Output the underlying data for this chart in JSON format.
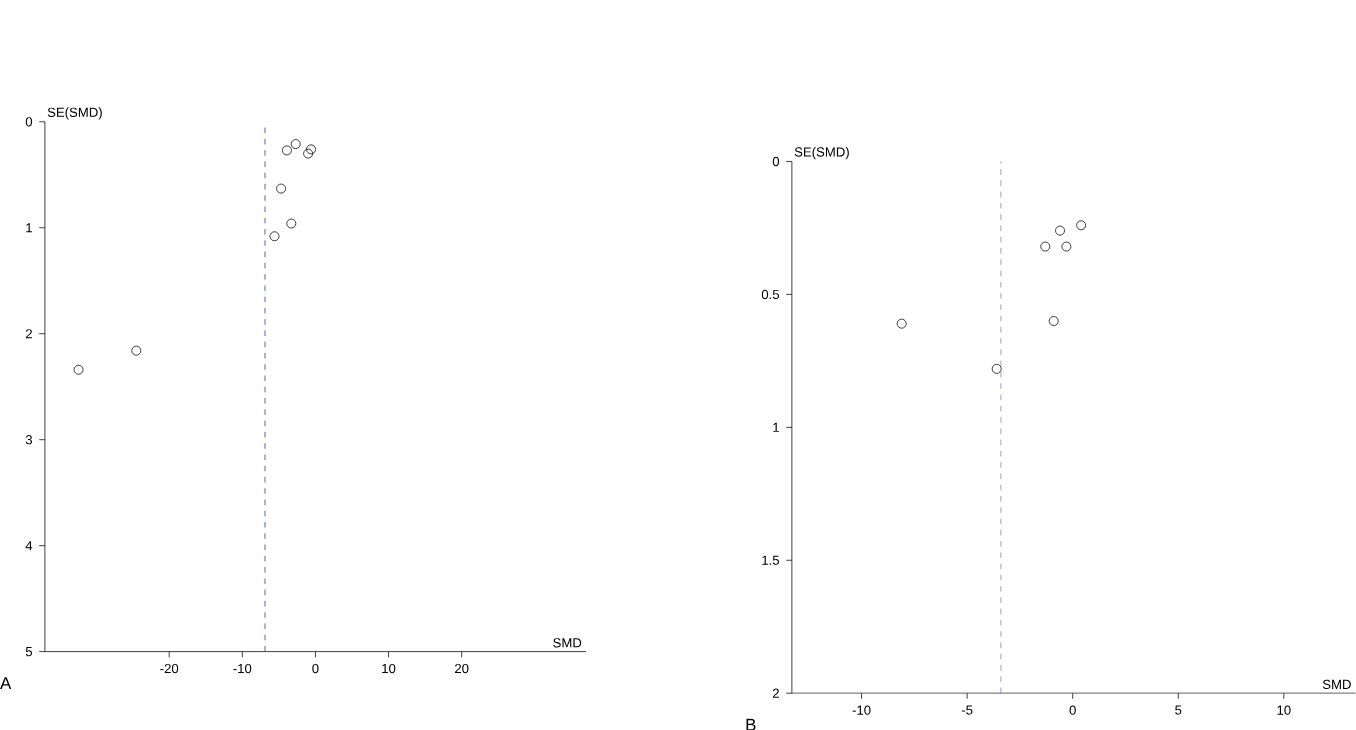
{
  "chart_data": [
    {
      "type": "scatter",
      "xlabel": "SMD",
      "ylabel": "SE(SMD)",
      "annotations": [
        "A"
      ],
      "marker": "circle",
      "xlim": [
        -37,
        37
      ],
      "ylim": [
        5,
        0
      ],
      "xticks": [
        -20,
        -10,
        0,
        10,
        20
      ],
      "yticks": [
        0,
        1,
        2,
        3,
        4,
        5
      ],
      "series": [
        {
          "color": "#000000",
          "x": [
            -32.4,
            -24.5,
            -3.9,
            -2.7,
            -1.0,
            -0.6,
            -4.7,
            -3.3,
            -5.6
          ],
          "values": [
            2.34,
            2.16,
            0.27,
            0.21,
            0.3,
            0.26,
            0.63,
            0.96,
            1.08
          ]
        }
      ],
      "ref_lines": [
        {
          "axis": "x",
          "value": -6.9,
          "color": "#2233aa",
          "line_style": "dashed"
        }
      ]
    },
    {
      "type": "scatter",
      "xlabel": "SMD",
      "ylabel": "SE(SMD)",
      "annotations": [
        "B"
      ],
      "marker": "circle",
      "xlim": [
        -13.3,
        13.4
      ],
      "ylim": [
        2,
        0
      ],
      "xticks": [
        -10,
        -5,
        0,
        5,
        10
      ],
      "yticks": [
        0,
        0.5,
        1,
        1.5,
        2
      ],
      "series": [
        {
          "color": "#000000",
          "x": [
            -8.1,
            -3.6,
            -1.3,
            -0.6,
            -0.3,
            0.4,
            -0.9
          ],
          "values": [
            0.61,
            0.78,
            0.32,
            0.26,
            0.32,
            0.24,
            0.6
          ]
        }
      ],
      "ref_lines": [
        {
          "axis": "x",
          "value": -3.4,
          "color": "#7777dd",
          "line_style": "dashed"
        }
      ]
    }
  ]
}
